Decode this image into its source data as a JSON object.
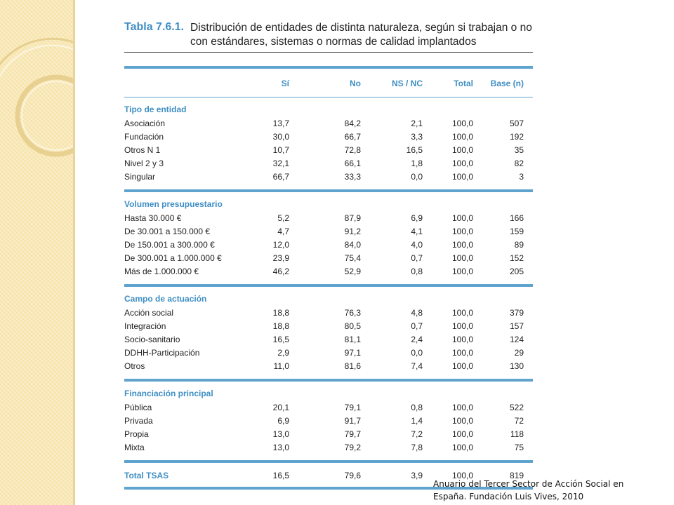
{
  "title": {
    "number": "Tabla 7.6.1.",
    "line1": "Distribución de entidades de distinta naturaleza, según si trabajan o no",
    "line2": "con estándares, sistemas o normas de calidad implantados"
  },
  "columns": [
    "Sí",
    "No",
    "NS / NC",
    "Total",
    "Base (n)"
  ],
  "groups": [
    {
      "title": "Tipo de entidad",
      "rows": [
        {
          "label": "Asociación",
          "values": [
            "13,7",
            "84,2",
            "2,1",
            "100,0",
            "507"
          ]
        },
        {
          "label": "Fundación",
          "values": [
            "30,0",
            "66,7",
            "3,3",
            "100,0",
            "192"
          ]
        },
        {
          "label": "Otros N 1",
          "values": [
            "10,7",
            "72,8",
            "16,5",
            "100,0",
            "35"
          ]
        },
        {
          "label": "Nivel 2 y 3",
          "values": [
            "32,1",
            "66,1",
            "1,8",
            "100,0",
            "82"
          ]
        },
        {
          "label": "Singular",
          "values": [
            "66,7",
            "33,3",
            "0,0",
            "100,0",
            "3"
          ]
        }
      ]
    },
    {
      "title": "Volumen presupuestario",
      "rows": [
        {
          "label": "Hasta 30.000 €",
          "values": [
            "5,2",
            "87,9",
            "6,9",
            "100,0",
            "166"
          ]
        },
        {
          "label": "De 30.001 a 150.000 €",
          "values": [
            "4,7",
            "91,2",
            "4,1",
            "100,0",
            "159"
          ]
        },
        {
          "label": "De 150.001 a 300.000 €",
          "values": [
            "12,0",
            "84,0",
            "4,0",
            "100,0",
            "89"
          ]
        },
        {
          "label": "De 300.001 a 1.000.000 €",
          "values": [
            "23,9",
            "75,4",
            "0,7",
            "100,0",
            "152"
          ]
        },
        {
          "label": "Más de 1.000.000 €",
          "values": [
            "46,2",
            "52,9",
            "0,8",
            "100,0",
            "205"
          ]
        }
      ]
    },
    {
      "title": "Campo de actuación",
      "rows": [
        {
          "label": "Acción social",
          "values": [
            "18,8",
            "76,3",
            "4,8",
            "100,0",
            "379"
          ]
        },
        {
          "label": "Integración",
          "values": [
            "18,8",
            "80,5",
            "0,7",
            "100,0",
            "157"
          ]
        },
        {
          "label": "Socio-sanitario",
          "values": [
            "16,5",
            "81,1",
            "2,4",
            "100,0",
            "124"
          ]
        },
        {
          "label": "DDHH-Participación",
          "values": [
            "2,9",
            "97,1",
            "0,0",
            "100,0",
            "29"
          ]
        },
        {
          "label": "Otros",
          "values": [
            "11,0",
            "81,6",
            "7,4",
            "100,0",
            "130"
          ]
        }
      ]
    },
    {
      "title": "Financiación principal",
      "rows": [
        {
          "label": "Pública",
          "values": [
            "20,1",
            "79,1",
            "0,8",
            "100,0",
            "522"
          ]
        },
        {
          "label": "Privada",
          "values": [
            "6,9",
            "91,7",
            "1,4",
            "100,0",
            "72"
          ]
        },
        {
          "label": "Propia",
          "values": [
            "13,0",
            "79,7",
            "7,2",
            "100,0",
            "118"
          ]
        },
        {
          "label": "Mixta",
          "values": [
            "13,0",
            "79,2",
            "7,8",
            "100,0",
            "75"
          ]
        }
      ]
    }
  ],
  "total": {
    "label": "Total TSAS",
    "values": [
      "16,5",
      "79,6",
      "3,9",
      "100,0",
      "819"
    ]
  },
  "source": {
    "line1": "Anuario del Tercer Sector de Acción Social en",
    "line2": "España.  Fundación Luis Vives, 2010"
  },
  "colors": {
    "accent": "#3f8fc4",
    "rule": "#5fa3cf",
    "sidebar": "#f6e2a6"
  }
}
